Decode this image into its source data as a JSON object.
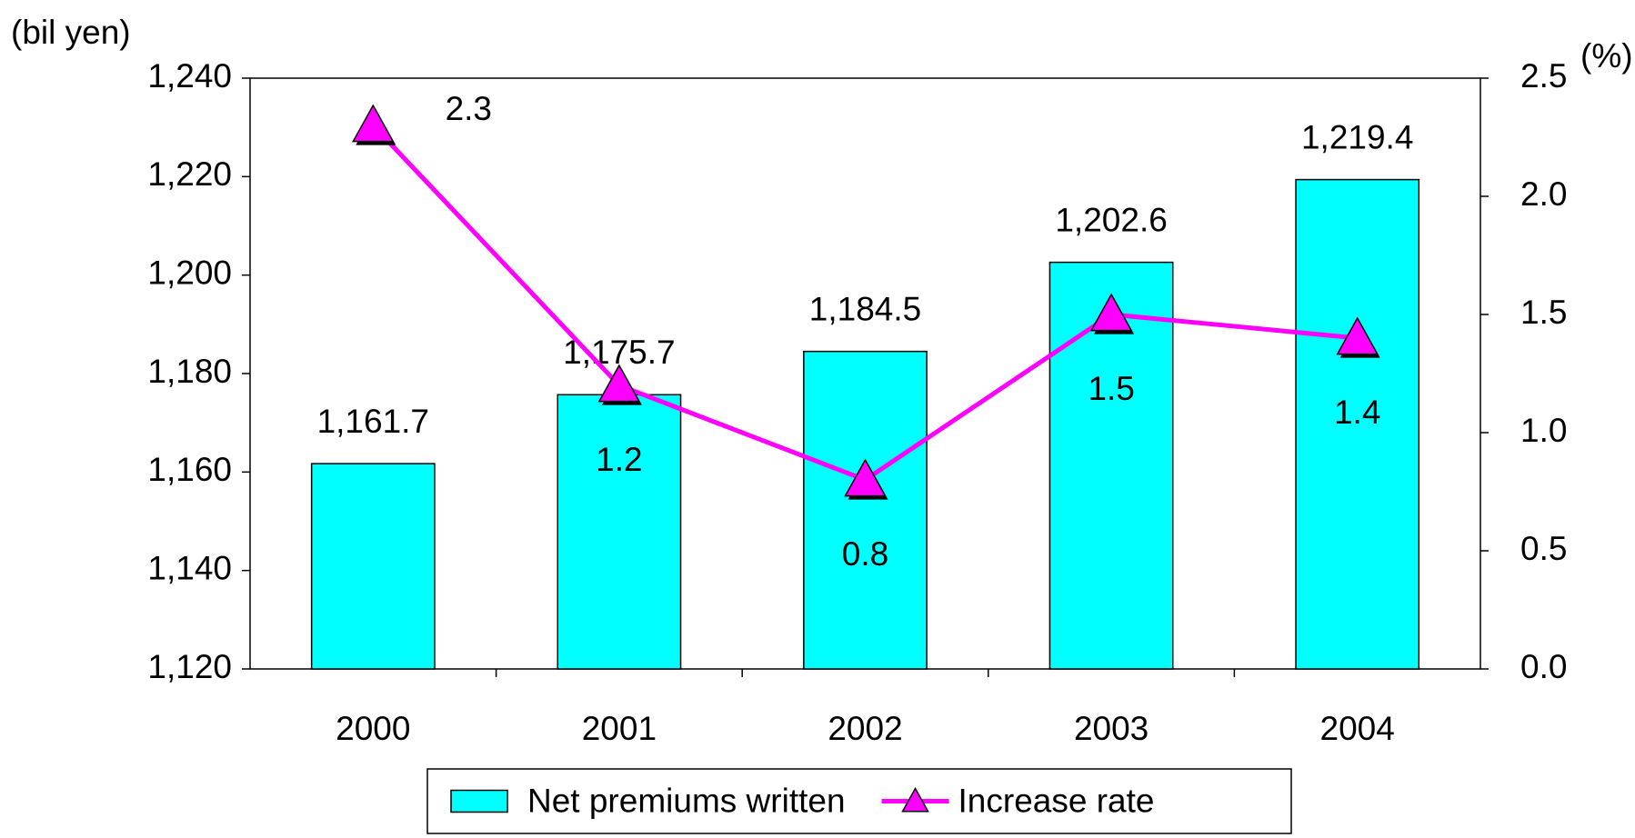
{
  "chart_data": {
    "type": "bar",
    "ylabel": "(bil yen)",
    "y2label": "(%)",
    "categories": [
      "2000",
      "2001",
      "2002",
      "2003",
      "2004"
    ],
    "series": [
      {
        "name": "Net premiums written",
        "type": "bar",
        "color": "#00ffff",
        "values": [
          1161.7,
          1175.7,
          1184.5,
          1202.6,
          1219.4
        ],
        "value_labels": [
          "1,161.7",
          "1,175.7",
          "1,184.5",
          "1,202.6",
          "1,219.4"
        ]
      },
      {
        "name": "Increase rate",
        "type": "line",
        "axis": "y2",
        "color": "#ff00ff",
        "values": [
          2.3,
          1.2,
          0.8,
          1.5,
          1.4
        ]
      }
    ],
    "ylim": [
      1120,
      1240
    ],
    "yticks": [
      {
        "value": 1120,
        "label": "1,120"
      },
      {
        "value": 1140,
        "label": "1,140"
      },
      {
        "value": 1160,
        "label": "1,160"
      },
      {
        "value": 1180,
        "label": "1,180"
      },
      {
        "value": 1200,
        "label": "1,200"
      },
      {
        "value": 1220,
        "label": "1,220"
      },
      {
        "value": 1240,
        "label": "1,240"
      }
    ],
    "y2lim": [
      0,
      2.5
    ],
    "y2ticks": [
      {
        "value": 0,
        "label": "0.0"
      },
      {
        "value": 0.5,
        "label": "0.5"
      },
      {
        "value": 1,
        "label": "1.0"
      },
      {
        "value": 1.5,
        "label": "1.5"
      },
      {
        "value": 2,
        "label": "2.0"
      },
      {
        "value": 2.5,
        "label": "2.5"
      }
    ],
    "grid": false,
    "legend": "bottom"
  }
}
